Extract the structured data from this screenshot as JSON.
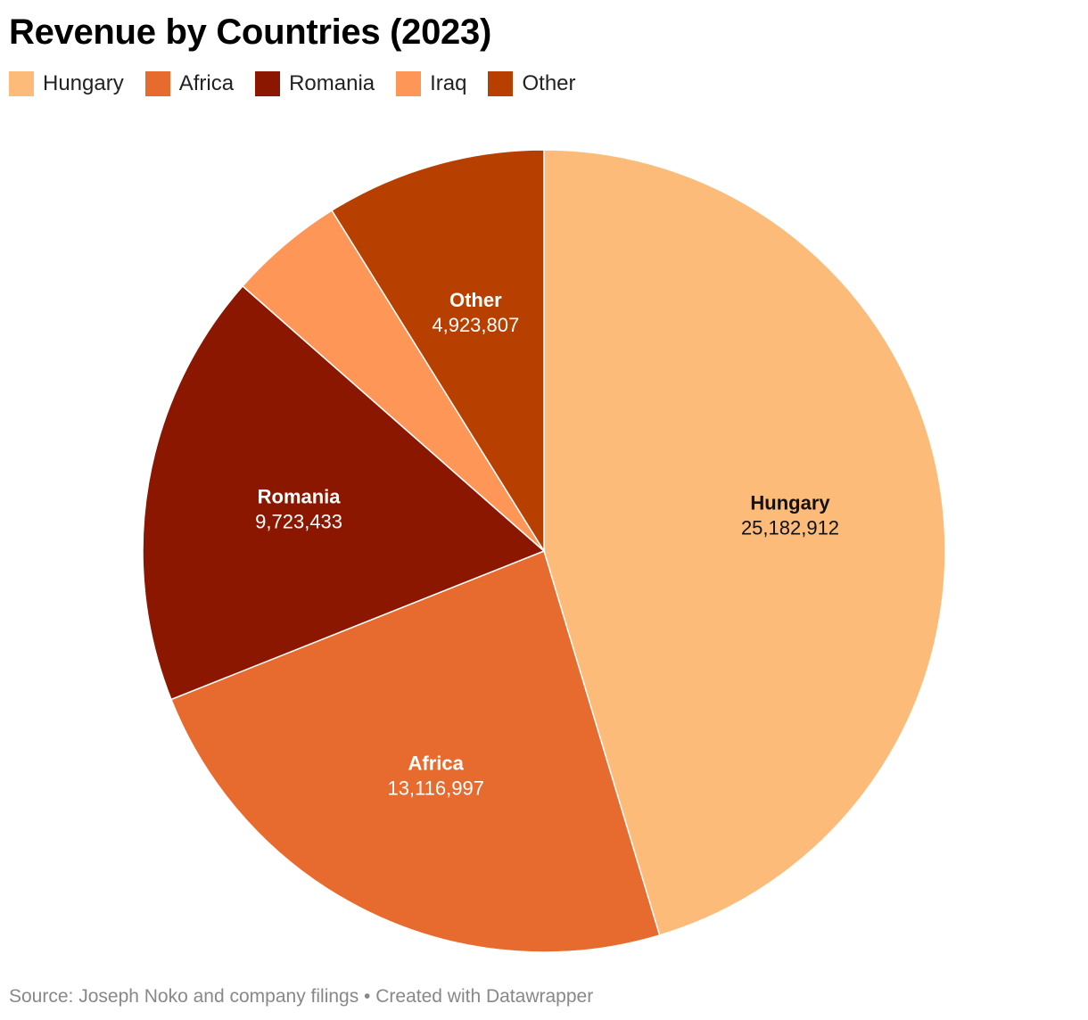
{
  "chart_data": {
    "type": "pie",
    "title": "Revenue by Countries (2023)",
    "categories": [
      "Hungary",
      "Africa",
      "Romania",
      "Iraq",
      "Other"
    ],
    "values": [
      25182912,
      13116997,
      9723433,
      2585000,
      4923807
    ],
    "value_labels": [
      "25,182,912",
      "13,116,997",
      "9,723,433",
      "",
      "4,923,807"
    ],
    "colors": [
      "#fdbb7a",
      "#e76a2f",
      "#8b1700",
      "#fd9656",
      "#b73f00"
    ],
    "label_colors": [
      "#111111",
      "#ffffff",
      "#ffffff",
      "#ffffff",
      "#ffffff"
    ],
    "legend_placement": "top-left",
    "start_angle_deg": 0,
    "direction": "clockwise"
  },
  "footer": {
    "source": "Source: Joseph Noko and company filings • Created with Datawrapper"
  }
}
